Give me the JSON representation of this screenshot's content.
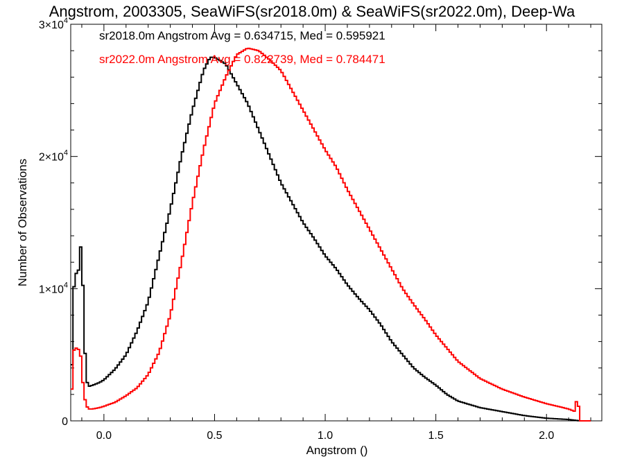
{
  "chart_data": {
    "type": "line",
    "title": "Angstrom, 2003305, SeaWiFS(sr2018.0m) & SeaWiFS(sr2022.0m), Deep-Wa",
    "xlabel": "Angstrom ()",
    "ylabel": "Number of Observations",
    "xlim": [
      -0.15,
      2.25
    ],
    "ylim": [
      0,
      30000
    ],
    "x_ticks": [
      0.0,
      0.5,
      1.0,
      1.5,
      2.0
    ],
    "x_tick_labels": [
      "0.0",
      "0.5",
      "1.0",
      "1.5",
      "2.0"
    ],
    "y_ticks": [
      0,
      10000,
      20000,
      30000
    ],
    "y_tick_labels": [
      {
        "mantissa": "0",
        "exponent": ""
      },
      {
        "mantissa": "1×10",
        "exponent": "4"
      },
      {
        "mantissa": "2×10",
        "exponent": "4"
      },
      {
        "mantissa": "3×10",
        "exponent": "4"
      }
    ],
    "grid": false,
    "step": true,
    "series": [
      {
        "name": "sr2018.0m",
        "color": "#000000",
        "annotation": "sr2018.0m Angstrom Avg = 0.634715, Med = 0.595921",
        "x": [
          -0.15,
          -0.14,
          -0.13,
          -0.12,
          -0.11,
          -0.1,
          -0.09,
          -0.08,
          -0.07,
          -0.05,
          -0.02,
          0.0,
          0.05,
          0.1,
          0.15,
          0.2,
          0.25,
          0.3,
          0.35,
          0.4,
          0.45,
          0.48,
          0.5,
          0.55,
          0.6,
          0.65,
          0.7,
          0.75,
          0.8,
          0.85,
          0.9,
          0.95,
          1.0,
          1.05,
          1.1,
          1.15,
          1.2,
          1.25,
          1.3,
          1.35,
          1.4,
          1.45,
          1.5,
          1.55,
          1.6,
          1.7,
          1.8,
          1.9,
          2.0,
          2.1,
          2.15,
          2.2
        ],
        "y": [
          500,
          8000,
          12300,
          10000,
          12800,
          13500,
          7000,
          3200,
          2600,
          2700,
          2900,
          3100,
          3900,
          5000,
          6800,
          9000,
          12500,
          16000,
          20000,
          23500,
          26500,
          27500,
          27500,
          27000,
          25500,
          24000,
          22000,
          20000,
          18000,
          16500,
          15000,
          13800,
          12500,
          11500,
          10300,
          9300,
          8400,
          7300,
          6000,
          5000,
          4000,
          3300,
          2700,
          2000,
          1500,
          1000,
          700,
          400,
          200,
          100,
          0,
          0
        ]
      },
      {
        "name": "sr2022.0m",
        "color": "#ff0000",
        "annotation": "sr2022.0m Angstrom Avg = 0.822739, Med = 0.784471",
        "x": [
          -0.15,
          -0.14,
          -0.13,
          -0.12,
          -0.11,
          -0.1,
          -0.09,
          -0.08,
          -0.07,
          -0.05,
          -0.02,
          0.0,
          0.05,
          0.1,
          0.15,
          0.2,
          0.25,
          0.3,
          0.35,
          0.4,
          0.45,
          0.5,
          0.55,
          0.6,
          0.65,
          0.7,
          0.75,
          0.8,
          0.85,
          0.9,
          0.95,
          1.0,
          1.05,
          1.1,
          1.15,
          1.2,
          1.25,
          1.3,
          1.35,
          1.4,
          1.45,
          1.5,
          1.55,
          1.6,
          1.7,
          1.8,
          1.9,
          2.0,
          2.1,
          2.13,
          2.14,
          2.15,
          2.2
        ],
        "y": [
          300,
          4500,
          6200,
          4800,
          6000,
          3800,
          2000,
          1200,
          900,
          900,
          1000,
          1100,
          1400,
          1900,
          2500,
          3500,
          5200,
          8000,
          12000,
          16500,
          20500,
          24000,
          26000,
          27700,
          28200,
          28000,
          27300,
          26500,
          25000,
          23500,
          22000,
          20500,
          19200,
          17500,
          16000,
          14500,
          13000,
          11500,
          10000,
          8800,
          7700,
          6500,
          5500,
          4500,
          3200,
          2400,
          1800,
          1300,
          900,
          700,
          2200,
          0,
          0
        ]
      }
    ]
  }
}
